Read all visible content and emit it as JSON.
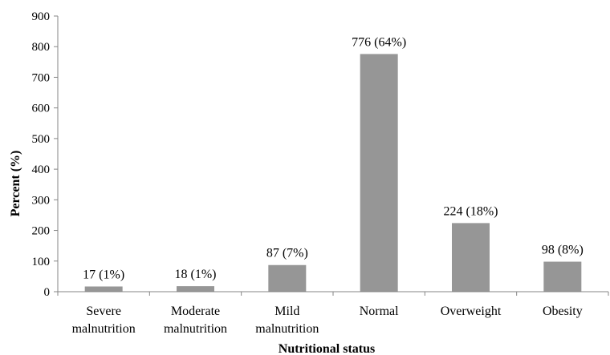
{
  "chart_data": {
    "type": "bar",
    "categories": [
      [
        "Severe",
        "malnutrition"
      ],
      [
        "Moderate",
        "malnutrition"
      ],
      [
        "Mild",
        "malnutrition"
      ],
      [
        "Normal"
      ],
      [
        "Overweight"
      ],
      [
        "Obesity"
      ]
    ],
    "values": [
      17,
      18,
      87,
      776,
      224,
      98
    ],
    "data_labels": [
      "17 (1%)",
      "18 (1%)",
      "87 (7%)",
      "776 (64%)",
      "224 (18%)",
      "98 (8%)"
    ],
    "title": "",
    "xlabel": "Nutritional status",
    "ylabel": "Percent (%)",
    "ylim": [
      0,
      900
    ],
    "yticks": [
      "0",
      "100",
      "200",
      "300",
      "400",
      "500",
      "600",
      "700",
      "800",
      "900"
    ],
    "grid": false,
    "legend": "none",
    "bar_color": "#969696",
    "axis_color": "#868686"
  }
}
